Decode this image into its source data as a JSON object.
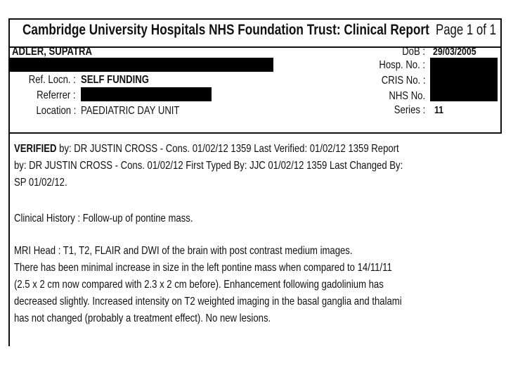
{
  "header": {
    "title": "Cambridge University Hospitals NHS Foundation Trust: Clinical Report",
    "page": "Page 1 of 1"
  },
  "patient": {
    "name": "ADLER, SUPATRA",
    "ref_locn_label": "Ref. Locn. :",
    "ref_locn": "SELF FUNDING",
    "referrer_label": "Referrer :",
    "location_label": "Location :",
    "location": "PAEDIATRIC DAY UNIT",
    "dob_label": "DoB :",
    "dob": "29/03/2005",
    "hosp_label": "Hosp. No. :",
    "cris_label": "CRIS No. :",
    "nhs_label": "NHS No.",
    "series_label": "Series :",
    "series": "11"
  },
  "report": {
    "verified_line1_bold": "VERIFIED",
    "verified_line1": " by: DR JUSTIN CROSS - Cons. 01/02/12 1359 Last Verified: 01/02/12 1359 Report",
    "verified_line2": "by: DR JUSTIN CROSS - Cons. 01/02/12  First Typed By: JJC 01/02/12 1359 Last Changed By:",
    "verified_line3": "SP 01/02/12.",
    "clinical_history": "Clinical History : Follow-up of pontine mass.",
    "findings": [
      "MRI Head : T1, T2, FLAIR and DWI of the brain with post contrast medium images.",
      "There has been minimal increase in size in the left pontine mass when compared to 14/11/11",
      "(2.5 x 2 cm now compared with 2.3 x 2 cm before).  Enhancement following gadolinium has",
      "decreased slightly.  Increased intensity on T2 weighted imaging in the basal ganglia and thalami",
      "has not changed (probably a treatment effect).  No new lesions."
    ]
  }
}
